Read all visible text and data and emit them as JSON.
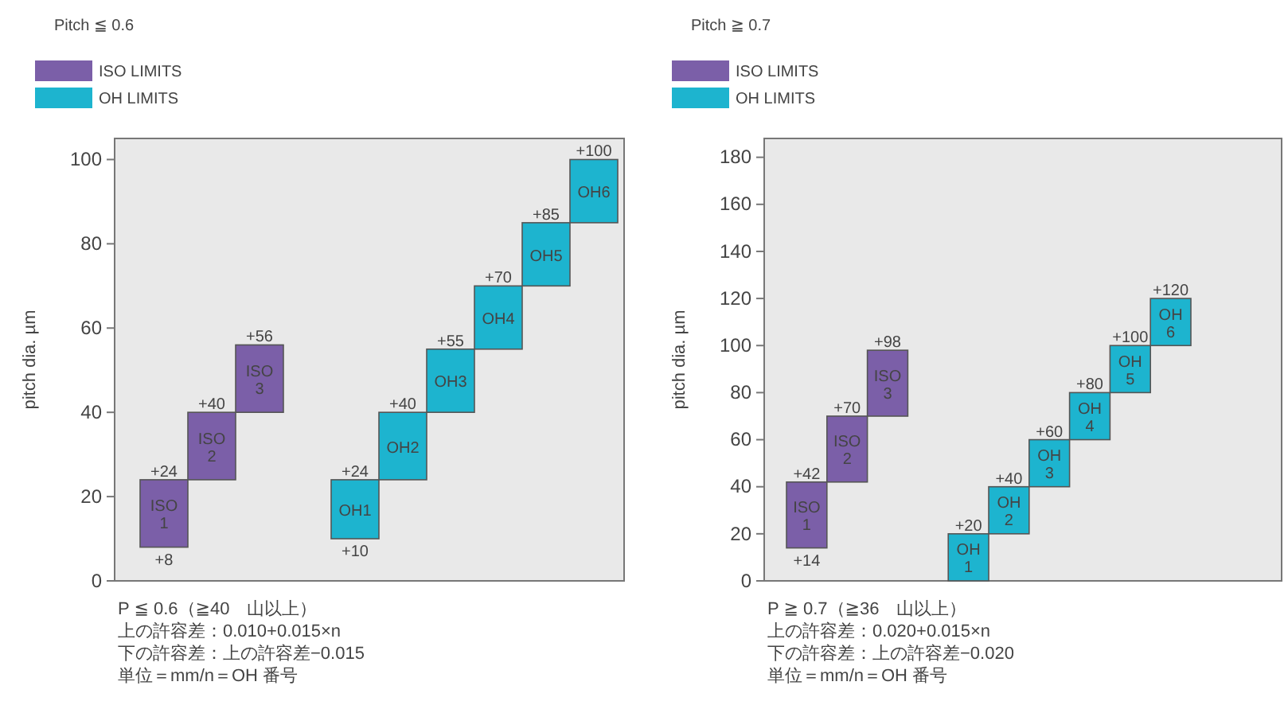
{
  "chart_data": [
    {
      "type": "bar",
      "title": "Pitch ≦ 0.6",
      "ylabel": "pitch dia. µm",
      "categories": [
        "ISO 1",
        "ISO 2",
        "ISO 3",
        null,
        "OH1",
        "OH2",
        "OH3",
        "OH4",
        "OH5",
        "OH6"
      ],
      "series": [
        {
          "name": "ISO LIMITS",
          "color": "#7b5fa8",
          "base": [
            8,
            24,
            40,
            null,
            null,
            null,
            null,
            null,
            null,
            null
          ],
          "values": [
            16,
            16,
            16,
            null,
            null,
            null,
            null,
            null,
            null,
            null
          ]
        },
        {
          "name": "OH LIMITS",
          "color": "#1db4cf",
          "base": [
            null,
            null,
            null,
            null,
            10,
            24,
            40,
            55,
            70,
            85
          ],
          "values": [
            null,
            null,
            null,
            null,
            14,
            16,
            15,
            15,
            15,
            15
          ]
        }
      ],
      "ylim": [
        0,
        105
      ],
      "yticks": [
        0,
        20,
        40,
        60,
        80,
        100
      ],
      "tick_labels": "y",
      "grid": false,
      "legend": "top left",
      "annotations": [
        {
          "text": "+8",
          "x": "ISO 1",
          "y": 8
        },
        {
          "text": "+24",
          "x": "ISO 1",
          "y": 24
        },
        {
          "text": "+40",
          "x": "ISO 2",
          "y": 40
        },
        {
          "text": "+56",
          "x": "ISO 3",
          "y": 56
        },
        {
          "text": "+10",
          "x": "OH1",
          "y": 10
        },
        {
          "text": "+24",
          "x": "OH1",
          "y": 24
        },
        {
          "text": "+40",
          "x": "OH2",
          "y": 40
        },
        {
          "text": "+55",
          "x": "OH3",
          "y": 55
        },
        {
          "text": "+70",
          "x": "OH4",
          "y": 70
        },
        {
          "text": "+85",
          "x": "OH5",
          "y": 85
        },
        {
          "text": "+100",
          "x": "OH6",
          "y": 100
        },
        "P ≦ 0.6（≧40　山以上）",
        "上の許容差：0.010+0.015×n",
        "下の許容差：上の許容差−0.015",
        "単位＝mm/n＝OH 番号"
      ]
    },
    {
      "type": "bar",
      "title": "Pitch ≧ 0.7",
      "ylabel": "pitch dia. µm",
      "categories": [
        "ISO 1",
        "ISO 2",
        "ISO 3",
        null,
        "OH 1",
        "OH 2",
        "OH 3",
        "OH 4",
        "OH 5",
        "OH 6"
      ],
      "series": [
        {
          "name": "ISO LIMITS",
          "color": "#7b5fa8",
          "base": [
            14,
            42,
            70,
            null,
            null,
            null,
            null,
            null,
            null,
            null
          ],
          "values": [
            28,
            28,
            28,
            null,
            null,
            null,
            null,
            null,
            null,
            null
          ]
        },
        {
          "name": "OH LIMITS",
          "color": "#1db4cf",
          "base": [
            null,
            null,
            null,
            null,
            0,
            20,
            40,
            60,
            80,
            100
          ],
          "values": [
            null,
            null,
            null,
            null,
            20,
            20,
            20,
            20,
            20,
            20
          ]
        }
      ],
      "ylim": [
        0,
        188
      ],
      "yticks": [
        0,
        20,
        40,
        60,
        80,
        100,
        120,
        140,
        160,
        180
      ],
      "tick_labels": "y",
      "grid": false,
      "legend": "top left",
      "annotations": [
        {
          "text": "+14",
          "x": "ISO 1",
          "y": 14
        },
        {
          "text": "+42",
          "x": "ISO 1",
          "y": 42
        },
        {
          "text": "+70",
          "x": "ISO 2",
          "y": 70
        },
        {
          "text": "+98",
          "x": "ISO 3",
          "y": 98
        },
        {
          "text": "+20",
          "x": "OH 1",
          "y": 20
        },
        {
          "text": "+40",
          "x": "OH 2",
          "y": 40
        },
        {
          "text": "+60",
          "x": "OH 3",
          "y": 60
        },
        {
          "text": "+80",
          "x": "OH 4",
          "y": 80
        },
        {
          "text": "+100",
          "x": "OH 5",
          "y": 100
        },
        {
          "text": "+120",
          "x": "OH 6",
          "y": 120
        },
        "P ≧ 0.7（≧36　山以上）",
        "上の許容差：0.020+0.015×n",
        "下の許容差：上の許容差−0.020",
        "単位＝mm/n＝OH 番号"
      ]
    }
  ]
}
